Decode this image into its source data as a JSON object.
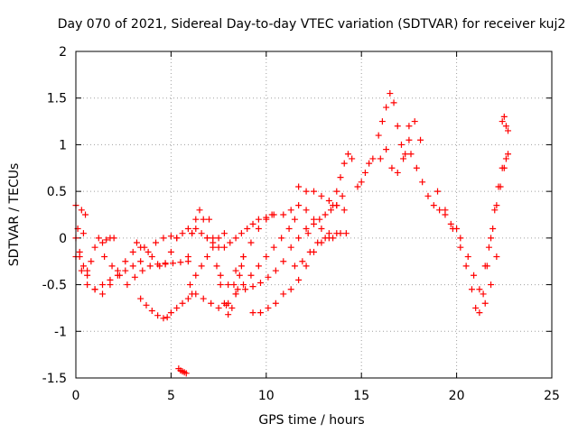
{
  "chart_data": {
    "type": "scatter",
    "title": "Day 070 of 2021, Sidereal Day-to-day VTEC variation (SDTVAR) for receiver kuj2",
    "xlabel": "GPS time / hours",
    "ylabel": "SDTVAR / TECUs",
    "xlim": [
      0,
      25
    ],
    "ylim": [
      -1.5,
      2
    ],
    "x_ticks": [
      "0",
      "5",
      "10",
      "15",
      "20",
      "25"
    ],
    "y_ticks": [
      "-1.5",
      "-1",
      "-0.5",
      "0",
      "0.5",
      "1",
      "1.5",
      "2"
    ],
    "grid": true,
    "marker": "plus",
    "series_color": "#ff0000",
    "series": [
      {
        "x": [
          0.0,
          0.2,
          0.4,
          0.6,
          0.8,
          1.0,
          1.2,
          1.4,
          1.6,
          1.8,
          2.0
        ],
        "y": [
          0.0,
          -0.15,
          -0.3,
          -0.35,
          -0.25,
          -0.1,
          0.0,
          -0.05,
          -0.02,
          0.0,
          0.0
        ]
      },
      {
        "x": [
          0.0,
          0.1,
          0.2,
          0.3,
          0.4,
          0.5
        ],
        "y": [
          0.35,
          0.1,
          -0.2,
          0.3,
          0.05,
          0.25
        ]
      },
      {
        "x": [
          0.0,
          0.3,
          0.6,
          1.0,
          1.4,
          1.8,
          2.2,
          2.6,
          3.0,
          3.4
        ],
        "y": [
          -0.2,
          -0.35,
          -0.5,
          -0.55,
          -0.5,
          -0.45,
          -0.35,
          -0.25,
          -0.15,
          -0.1
        ]
      },
      {
        "x": [
          0.6,
          1.0,
          1.4,
          1.8,
          2.2,
          2.6,
          3.0,
          3.4,
          3.8,
          4.2,
          4.6,
          5.0,
          5.3
        ],
        "y": [
          -0.4,
          -0.55,
          -0.6,
          -0.5,
          -0.4,
          -0.35,
          -0.3,
          -0.25,
          -0.15,
          -0.05,
          0.0,
          0.02,
          0.0
        ]
      },
      {
        "x": [
          1.5,
          1.9,
          2.3,
          2.7,
          3.1,
          3.5,
          3.9,
          4.3,
          4.7,
          5.1,
          5.5,
          5.9
        ],
        "y": [
          -0.2,
          -0.3,
          -0.4,
          -0.5,
          -0.42,
          -0.35,
          -0.3,
          -0.28,
          -0.27,
          -0.27,
          -0.26,
          -0.25
        ]
      },
      {
        "x": [
          3.2,
          3.6,
          4.0,
          4.4,
          4.7,
          5.0,
          5.3,
          5.6,
          5.9,
          6.1
        ],
        "y": [
          -0.05,
          -0.1,
          -0.2,
          -0.3,
          -0.28,
          -0.15,
          0.0,
          0.05,
          0.1,
          0.05
        ]
      },
      {
        "x": [
          3.4,
          3.7,
          4.0,
          4.3,
          4.6,
          4.8,
          5.0,
          5.3,
          5.6,
          5.9,
          6.1
        ],
        "y": [
          -0.65,
          -0.72,
          -0.78,
          -0.83,
          -0.86,
          -0.85,
          -0.8,
          -0.75,
          -0.7,
          -0.65,
          -0.6
        ]
      },
      {
        "x": [
          5.4,
          5.5,
          5.6,
          5.7,
          5.8
        ],
        "y": [
          -1.4,
          -1.42,
          -1.43,
          -1.44,
          -1.45
        ]
      },
      {
        "x": [
          5.9,
          6.1,
          6.3,
          6.5,
          6.7,
          6.9
        ],
        "y": [
          -0.2,
          0.05,
          0.2,
          0.3,
          0.2,
          0.0
        ]
      },
      {
        "x": [
          6.0,
          6.3,
          6.6,
          6.9,
          7.2,
          7.5,
          7.8
        ],
        "y": [
          -0.5,
          -0.4,
          -0.3,
          -0.2,
          -0.1,
          0.0,
          0.05
        ]
      },
      {
        "x": [
          6.3,
          6.6,
          6.9,
          7.2,
          7.5,
          7.8,
          8.1,
          8.4,
          8.7,
          9.0,
          9.3,
          9.6,
          10.0,
          10.4
        ],
        "y": [
          0.1,
          0.05,
          0.0,
          -0.05,
          -0.1,
          -0.1,
          -0.05,
          0.0,
          0.05,
          0.1,
          0.15,
          0.2,
          0.22,
          0.25
        ]
      },
      {
        "x": [
          6.3,
          6.7,
          7.1,
          7.5,
          7.9,
          8.3,
          8.7
        ],
        "y": [
          -0.6,
          -0.65,
          -0.7,
          -0.75,
          -0.72,
          -0.5,
          -0.3
        ]
      },
      {
        "x": [
          7.0,
          7.2,
          7.4,
          7.6,
          7.8,
          8.0,
          8.2,
          8.4,
          8.6,
          8.8
        ],
        "y": [
          0.2,
          0.0,
          -0.3,
          -0.5,
          -0.7,
          -0.82,
          -0.75,
          -0.6,
          -0.4,
          -0.2
        ]
      },
      {
        "x": [
          7.6,
          8.0,
          8.4,
          8.8,
          9.2,
          9.6,
          10.0,
          10.3
        ],
        "y": [
          -0.4,
          -0.5,
          -0.35,
          -0.2,
          -0.05,
          0.1,
          0.2,
          0.25
        ]
      },
      {
        "x": [
          8.0,
          8.4,
          8.8,
          9.2,
          9.6,
          10.0,
          10.4,
          10.8,
          11.2,
          11.5
        ],
        "y": [
          -0.7,
          -0.6,
          -0.5,
          -0.4,
          -0.3,
          -0.2,
          -0.1,
          0.0,
          0.1,
          0.2
        ]
      },
      {
        "x": [
          8.5,
          8.9,
          9.3,
          9.7,
          10.1,
          10.5,
          10.9,
          11.3,
          11.7,
          12.1
        ],
        "y": [
          -0.55,
          -0.55,
          -0.52,
          -0.48,
          -0.42,
          -0.35,
          -0.25,
          -0.1,
          0.0,
          0.1
        ]
      },
      {
        "x": [
          9.3,
          9.7,
          10.1,
          10.5,
          10.9,
          11.3,
          11.7,
          12.1,
          12.5,
          12.9,
          13.3,
          13.7
        ],
        "y": [
          -0.8,
          -0.8,
          -0.75,
          -0.7,
          -0.6,
          -0.55,
          -0.45,
          -0.3,
          -0.15,
          -0.05,
          0.0,
          0.05
        ]
      },
      {
        "x": [
          10.9,
          11.3,
          11.7,
          12.1,
          12.5,
          12.9,
          13.3
        ],
        "y": [
          0.25,
          0.3,
          0.35,
          0.3,
          0.2,
          0.1,
          0.05
        ]
      },
      {
        "x": [
          11.5,
          11.9,
          12.3,
          12.7,
          13.1,
          13.5,
          13.9,
          14.2
        ],
        "y": [
          -0.3,
          -0.25,
          -0.15,
          -0.05,
          0.0,
          0.0,
          0.05,
          0.05
        ]
      },
      {
        "x": [
          11.7,
          12.1,
          12.5,
          12.9,
          13.3,
          13.7,
          14.1
        ],
        "y": [
          0.55,
          0.5,
          0.5,
          0.45,
          0.4,
          0.35,
          0.3
        ]
      },
      {
        "x": [
          12.2,
          12.5,
          12.8,
          13.1,
          13.4,
          13.7,
          14.0
        ],
        "y": [
          0.05,
          0.15,
          0.2,
          0.25,
          0.3,
          0.35,
          0.45
        ]
      },
      {
        "x": [
          13.5,
          13.7,
          13.9,
          14.1,
          14.3,
          14.5
        ],
        "y": [
          0.35,
          0.5,
          0.65,
          0.8,
          0.9,
          0.85
        ]
      },
      {
        "x": [
          14.8,
          15.0,
          15.2,
          15.4,
          15.6
        ],
        "y": [
          0.55,
          0.6,
          0.7,
          0.8,
          0.85
        ]
      },
      {
        "x": [
          15.9,
          16.1,
          16.3,
          16.5,
          16.7,
          16.9,
          17.1,
          17.3,
          17.5
        ],
        "y": [
          1.1,
          1.25,
          1.4,
          1.55,
          1.45,
          1.2,
          1.0,
          0.9,
          1.05
        ]
      },
      {
        "x": [
          16.0,
          16.3,
          16.6,
          16.9,
          17.2,
          17.5,
          17.8,
          18.1
        ],
        "y": [
          0.85,
          0.95,
          0.75,
          0.7,
          0.85,
          1.2,
          1.25,
          1.05
        ]
      },
      {
        "x": [
          17.6,
          17.9,
          18.2,
          18.5,
          18.8,
          19.1,
          19.4,
          19.7,
          20.0
        ],
        "y": [
          0.9,
          0.75,
          0.6,
          0.45,
          0.35,
          0.3,
          0.25,
          0.15,
          0.1
        ]
      },
      {
        "x": [
          19.0,
          19.4,
          19.8,
          20.2,
          20.6,
          20.9,
          21.2,
          21.5,
          21.8,
          22.1
        ],
        "y": [
          0.5,
          0.3,
          0.1,
          0.0,
          -0.2,
          -0.4,
          -0.55,
          -0.7,
          -0.5,
          -0.2
        ]
      },
      {
        "x": [
          20.2,
          20.5,
          20.8,
          21.0,
          21.2,
          21.4,
          21.6,
          21.8,
          22.0,
          22.2,
          22.4,
          22.6
        ],
        "y": [
          -0.1,
          -0.3,
          -0.55,
          -0.75,
          -0.8,
          -0.6,
          -0.3,
          0.0,
          0.3,
          0.55,
          0.75,
          0.85
        ]
      },
      {
        "x": [
          21.5,
          21.7,
          21.9,
          22.1,
          22.3,
          22.5,
          22.7
        ],
        "y": [
          -0.3,
          -0.1,
          0.1,
          0.35,
          0.55,
          0.75,
          0.9
        ]
      },
      {
        "x": [
          22.4,
          22.5,
          22.6,
          22.7
        ],
        "y": [
          1.25,
          1.3,
          1.2,
          1.15
        ]
      }
    ]
  }
}
